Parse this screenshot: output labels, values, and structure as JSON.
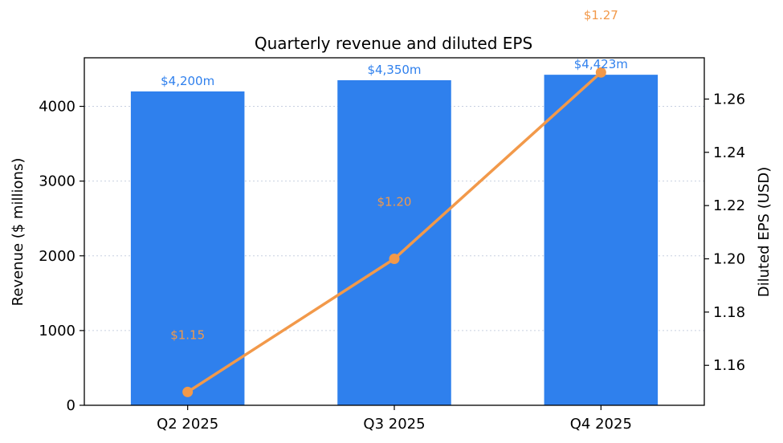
{
  "chart_data": {
    "type": "bar+line",
    "title": "Quarterly revenue and diluted EPS",
    "categories": [
      "Q2 2025",
      "Q3 2025",
      "Q4 2025"
    ],
    "series": [
      {
        "name": "Revenue",
        "type": "bar",
        "axis": "left",
        "values": [
          4200,
          4350,
          4423
        ],
        "labels": [
          "$4,200m",
          "$4,350m",
          "$4,423m"
        ],
        "color": "#2f80ed"
      },
      {
        "name": "Diluted EPS",
        "type": "line",
        "axis": "right",
        "values": [
          1.15,
          1.2,
          1.27
        ],
        "labels": [
          "$1.15",
          "$1.20",
          "$1.27"
        ],
        "color": "#f2994a"
      }
    ],
    "ylabel": "Revenue ($ millions)",
    "y2label": "Diluted EPS (USD)",
    "ylim": [
      0,
      4650
    ],
    "y2lim": [
      1.145,
      1.2755
    ],
    "yticks": [
      0,
      1000,
      2000,
      3000,
      4000
    ],
    "y2ticks": [
      1.16,
      1.18,
      1.2,
      1.22,
      1.24,
      1.26
    ],
    "y2tick_labels": [
      "1.16",
      "1.18",
      "1.20",
      "1.22",
      "1.24",
      "1.26"
    ],
    "grid": "horizontal dotted",
    "legend": "none",
    "colors": {
      "bar": "#2f80ed",
      "line": "#f2994a",
      "grid": "#c8d0e0",
      "text": "#000000"
    }
  }
}
